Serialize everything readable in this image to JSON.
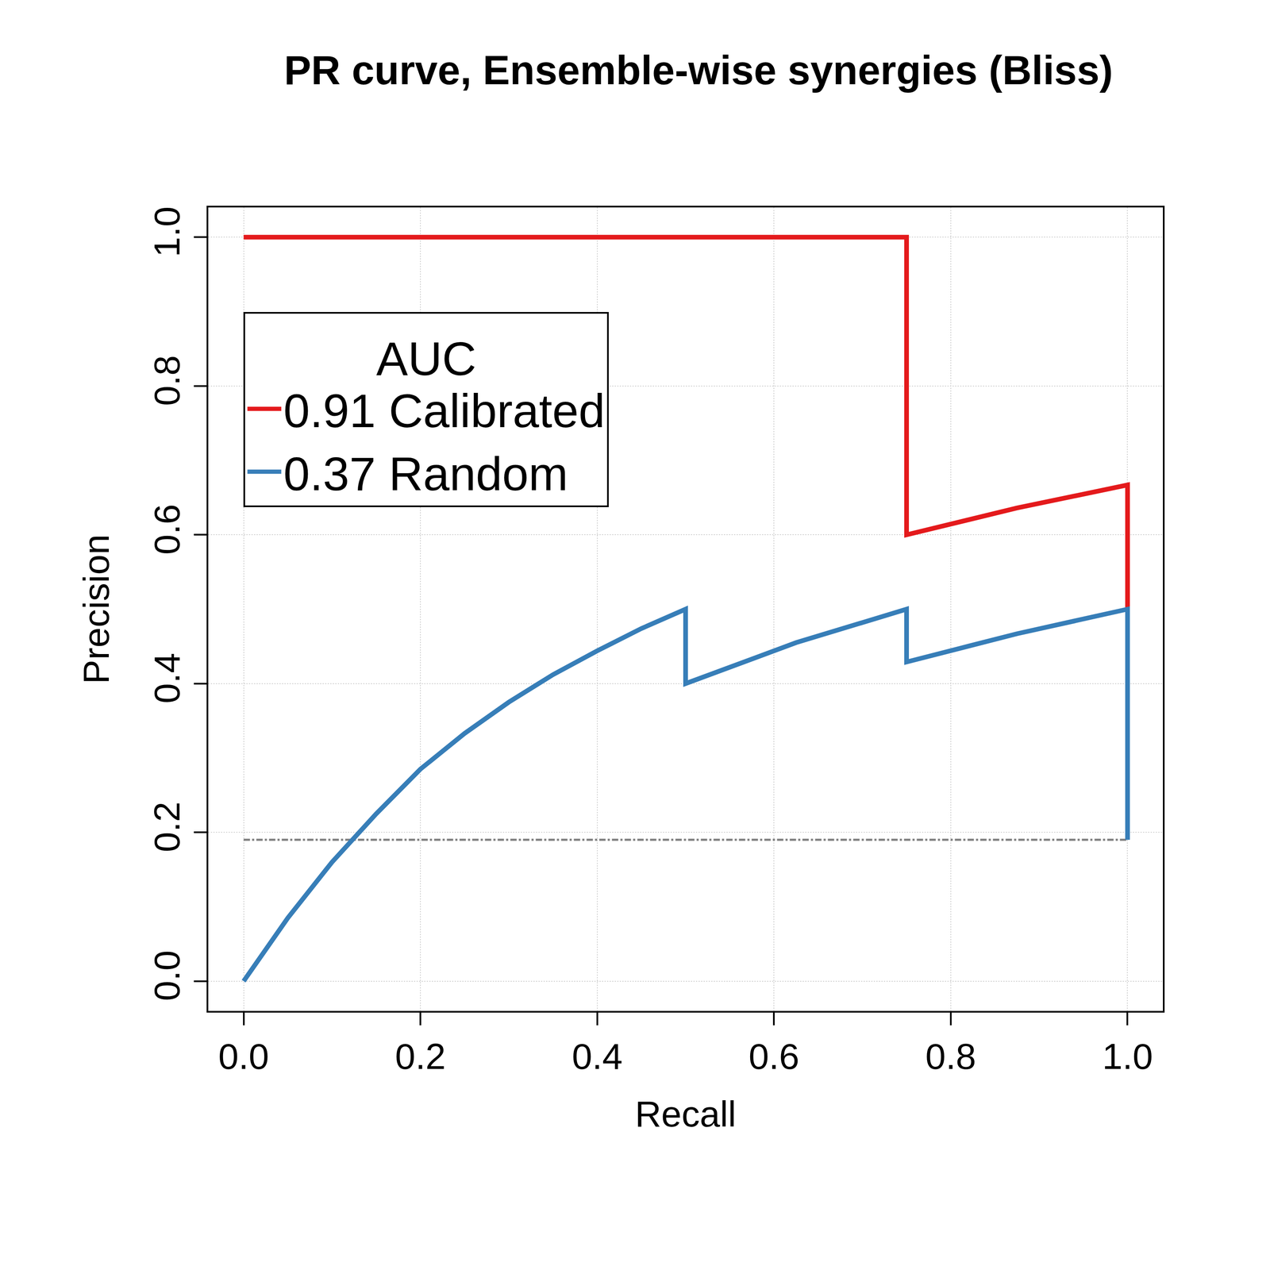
{
  "chart_data": {
    "type": "line",
    "title": "PR curve, Ensemble-wise synergies (Bliss)",
    "x_label": "Recall",
    "y_label": "Precision",
    "legend_title": "AUC",
    "legend": "top left",
    "grid": true,
    "xlim": [
      -0.04,
      1.04
    ],
    "ylim": [
      -0.04,
      1.04
    ],
    "xticks": [
      {
        "value": 0,
        "label": "0.0"
      },
      {
        "value": 0.2,
        "label": "0.2"
      },
      {
        "value": 0.4,
        "label": "0.4"
      },
      {
        "value": 0.6,
        "label": "0.6"
      },
      {
        "value": 0.8,
        "label": "0.8"
      },
      {
        "value": 1,
        "label": "1.0"
      }
    ],
    "yticks": [
      {
        "value": 0,
        "label": "0.0"
      },
      {
        "value": 0.2,
        "label": "0.2"
      },
      {
        "value": 0.4,
        "label": "0.4"
      },
      {
        "value": 0.6,
        "label": "0.6"
      },
      {
        "value": 0.8,
        "label": "0.8"
      },
      {
        "value": 1,
        "label": "1.0"
      }
    ],
    "series": [
      {
        "name": "0.91 Calibrated",
        "color": "#e41a1c",
        "line_style": "solid",
        "x": [
          0,
          0.75,
          0.75,
          0.875,
          1,
          1
        ],
        "values": [
          1,
          1,
          0.6,
          0.636,
          0.667,
          0.5
        ]
      },
      {
        "name": "0.37 Random",
        "color": "#377eb8",
        "line_style": "solid",
        "x": [
          0,
          0.05,
          0.1,
          0.15,
          0.2,
          0.25,
          0.3,
          0.35,
          0.4,
          0.45,
          0.5,
          0.5,
          0.625,
          0.75,
          0.75,
          0.875,
          1,
          1
        ],
        "values": [
          0,
          0.085,
          0.16,
          0.225,
          0.285,
          0.333,
          0.375,
          0.412,
          0.444,
          0.474,
          0.5,
          0.4,
          0.455,
          0.5,
          0.429,
          0.467,
          0.5,
          0.19
        ]
      },
      {
        "color": "#808080",
        "line_style": "dashdot",
        "x": [
          0,
          1
        ],
        "values": [
          0.19,
          0.19
        ]
      }
    ]
  }
}
